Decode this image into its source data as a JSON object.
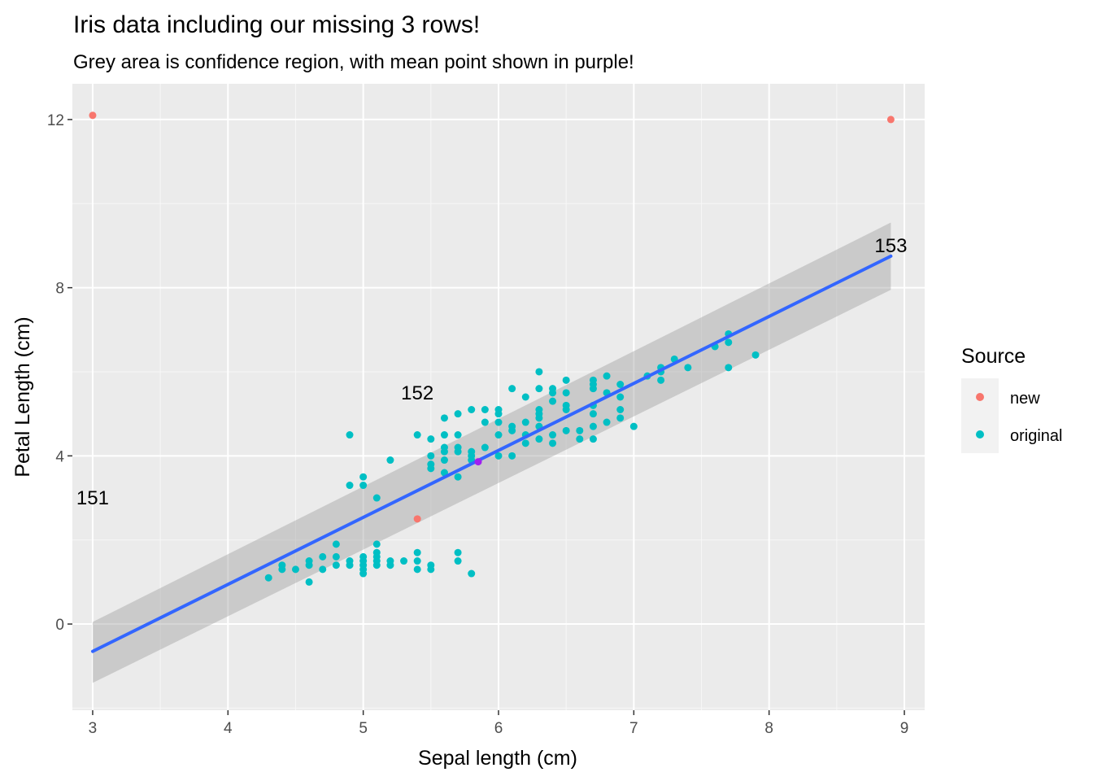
{
  "chart_data": {
    "type": "scatter",
    "title": "Iris data including our missing 3 rows!",
    "subtitle": "Grey area is confidence region, with mean point shown in purple!",
    "xlabel": "Sepal length (cm)",
    "ylabel": "Petal Length (cm)",
    "xlim": [
      2.85,
      9.15
    ],
    "ylim": [
      -2.05,
      12.85
    ],
    "x_ticks": [
      3,
      4,
      5,
      6,
      7,
      8,
      9
    ],
    "y_ticks": [
      0,
      4,
      8,
      12
    ],
    "grid": true,
    "legend": {
      "title": "Source",
      "position": "right",
      "entries": [
        {
          "label": "new",
          "color": "#F8766D"
        },
        {
          "label": "original",
          "color": "#00BFC4"
        }
      ]
    },
    "series": [
      {
        "name": "original",
        "color": "#00BFC4",
        "points": [
          [
            4.3,
            1.1
          ],
          [
            4.4,
            1.3
          ],
          [
            4.4,
            1.4
          ],
          [
            4.5,
            1.3
          ],
          [
            4.6,
            1.0
          ],
          [
            4.6,
            1.4
          ],
          [
            4.6,
            1.5
          ],
          [
            4.7,
            1.3
          ],
          [
            4.7,
            1.6
          ],
          [
            4.8,
            1.4
          ],
          [
            4.8,
            1.6
          ],
          [
            4.8,
            1.9
          ],
          [
            4.9,
            1.4
          ],
          [
            4.9,
            1.5
          ],
          [
            4.9,
            3.3
          ],
          [
            4.9,
            4.5
          ],
          [
            5.0,
            1.2
          ],
          [
            5.0,
            1.3
          ],
          [
            5.0,
            1.4
          ],
          [
            5.0,
            1.5
          ],
          [
            5.0,
            1.6
          ],
          [
            5.0,
            3.3
          ],
          [
            5.0,
            3.5
          ],
          [
            5.1,
            1.4
          ],
          [
            5.1,
            1.5
          ],
          [
            5.1,
            1.6
          ],
          [
            5.1,
            1.7
          ],
          [
            5.1,
            1.9
          ],
          [
            5.1,
            3.0
          ],
          [
            5.2,
            1.4
          ],
          [
            5.2,
            1.5
          ],
          [
            5.2,
            3.9
          ],
          [
            5.3,
            1.5
          ],
          [
            5.4,
            1.3
          ],
          [
            5.4,
            1.5
          ],
          [
            5.4,
            1.7
          ],
          [
            5.4,
            4.5
          ],
          [
            5.5,
            1.3
          ],
          [
            5.5,
            1.4
          ],
          [
            5.5,
            3.7
          ],
          [
            5.5,
            3.8
          ],
          [
            5.5,
            4.0
          ],
          [
            5.5,
            4.4
          ],
          [
            5.6,
            3.6
          ],
          [
            5.6,
            3.9
          ],
          [
            5.6,
            4.1
          ],
          [
            5.6,
            4.2
          ],
          [
            5.6,
            4.5
          ],
          [
            5.6,
            4.9
          ],
          [
            5.7,
            1.5
          ],
          [
            5.7,
            1.7
          ],
          [
            5.7,
            3.5
          ],
          [
            5.7,
            4.1
          ],
          [
            5.7,
            4.2
          ],
          [
            5.7,
            4.5
          ],
          [
            5.7,
            5.0
          ],
          [
            5.8,
            1.2
          ],
          [
            5.8,
            3.9
          ],
          [
            5.8,
            4.0
          ],
          [
            5.8,
            4.1
          ],
          [
            5.8,
            5.1
          ],
          [
            5.9,
            4.2
          ],
          [
            5.9,
            4.8
          ],
          [
            5.9,
            5.1
          ],
          [
            6.0,
            4.0
          ],
          [
            6.0,
            4.5
          ],
          [
            6.0,
            4.8
          ],
          [
            6.0,
            5.0
          ],
          [
            6.0,
            5.1
          ],
          [
            6.1,
            4.0
          ],
          [
            6.1,
            4.6
          ],
          [
            6.1,
            4.7
          ],
          [
            6.1,
            5.6
          ],
          [
            6.2,
            4.3
          ],
          [
            6.2,
            4.5
          ],
          [
            6.2,
            4.8
          ],
          [
            6.2,
            5.4
          ],
          [
            6.3,
            4.4
          ],
          [
            6.3,
            4.7
          ],
          [
            6.3,
            4.9
          ],
          [
            6.3,
            5.0
          ],
          [
            6.3,
            5.1
          ],
          [
            6.3,
            5.6
          ],
          [
            6.3,
            6.0
          ],
          [
            6.4,
            4.3
          ],
          [
            6.4,
            4.5
          ],
          [
            6.4,
            5.3
          ],
          [
            6.4,
            5.5
          ],
          [
            6.4,
            5.6
          ],
          [
            6.5,
            4.6
          ],
          [
            6.5,
            5.1
          ],
          [
            6.5,
            5.2
          ],
          [
            6.5,
            5.5
          ],
          [
            6.5,
            5.8
          ],
          [
            6.6,
            4.4
          ],
          [
            6.6,
            4.6
          ],
          [
            6.7,
            4.4
          ],
          [
            6.7,
            4.7
          ],
          [
            6.7,
            5.0
          ],
          [
            6.7,
            5.2
          ],
          [
            6.7,
            5.6
          ],
          [
            6.7,
            5.7
          ],
          [
            6.7,
            5.8
          ],
          [
            6.8,
            4.8
          ],
          [
            6.8,
            5.5
          ],
          [
            6.8,
            5.9
          ],
          [
            6.9,
            4.9
          ],
          [
            6.9,
            5.1
          ],
          [
            6.9,
            5.4
          ],
          [
            6.9,
            5.7
          ],
          [
            7.0,
            4.7
          ],
          [
            7.1,
            5.9
          ],
          [
            7.2,
            5.8
          ],
          [
            7.2,
            6.0
          ],
          [
            7.2,
            6.1
          ],
          [
            7.3,
            6.3
          ],
          [
            7.4,
            6.1
          ],
          [
            7.6,
            6.6
          ],
          [
            7.7,
            6.1
          ],
          [
            7.7,
            6.7
          ],
          [
            7.7,
            6.9
          ],
          [
            7.9,
            6.4
          ]
        ]
      },
      {
        "name": "new",
        "color": "#F8766D",
        "points": [
          [
            3.0,
            12.1
          ],
          [
            5.4,
            2.5
          ],
          [
            8.9,
            12.0
          ]
        ]
      }
    ],
    "mean_point": {
      "x": 5.85,
      "y": 3.86,
      "color": "#A020F0"
    },
    "regression": {
      "color": "#3366FF",
      "x": [
        3.0,
        8.9
      ],
      "y": [
        -0.65,
        8.75
      ],
      "band_lower": [
        -1.4,
        7.95
      ],
      "band_upper": [
        0.05,
        9.55
      ]
    },
    "annotations": [
      {
        "text": "151",
        "x": 3.0,
        "y": 3.0
      },
      {
        "text": "152",
        "x": 5.4,
        "y": 5.5
      },
      {
        "text": "153",
        "x": 8.9,
        "y": 9.0
      }
    ]
  }
}
